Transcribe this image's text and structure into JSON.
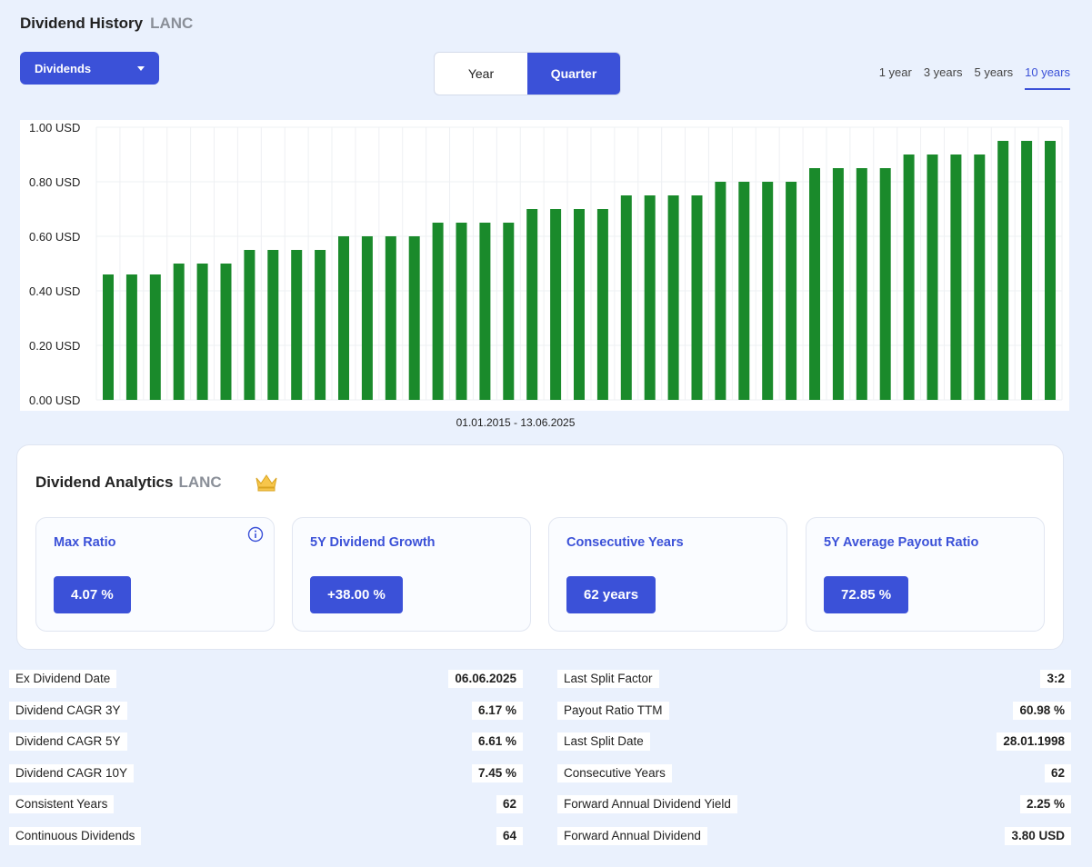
{
  "header": {
    "title": "Dividend History",
    "ticker": "LANC"
  },
  "dropdown": {
    "selected": "Dividends"
  },
  "toggle": {
    "year_label": "Year",
    "quarter_label": "Quarter",
    "active": "Quarter"
  },
  "ranges": [
    "1 year",
    "3 years",
    "5 years",
    "10 years"
  ],
  "selected_range": "10 years",
  "colors": {
    "accent": "#3b51d8",
    "bar": "#1a8a2b",
    "background": "#eaf1fd"
  },
  "chart_data": {
    "type": "bar",
    "ylim": [
      0,
      1.0
    ],
    "ytick_labels": [
      "1.00 USD",
      "0.80 USD",
      "0.60 USD",
      "0.40 USD",
      "0.20 USD",
      "0.00 USD"
    ],
    "grid": true,
    "xlabel": "01.01.2015 - 13.06.2025",
    "values": [
      0.46,
      0.46,
      0.46,
      0.5,
      0.5,
      0.5,
      0.55,
      0.55,
      0.55,
      0.55,
      0.6,
      0.6,
      0.6,
      0.6,
      0.65,
      0.65,
      0.65,
      0.65,
      0.7,
      0.7,
      0.7,
      0.7,
      0.75,
      0.75,
      0.75,
      0.75,
      0.8,
      0.8,
      0.8,
      0.8,
      0.85,
      0.85,
      0.85,
      0.85,
      0.9,
      0.9,
      0.9,
      0.9,
      0.95,
      0.95,
      0.95
    ]
  },
  "analytics": {
    "title": "Dividend Analytics",
    "ticker": "LANC",
    "crown_icon": "crown-icon",
    "metrics": [
      {
        "label": "Max Ratio",
        "value": "4.07 %"
      },
      {
        "label": "5Y Dividend Growth",
        "value": "+38.00 %"
      },
      {
        "label": "Consecutive Years",
        "value": "62 years"
      },
      {
        "label": "5Y Average Payout Ratio",
        "value": "72.85 %"
      }
    ]
  },
  "stats_left": [
    {
      "label": "Ex Dividend Date",
      "value": "06.06.2025"
    },
    {
      "label": "Dividend CAGR 3Y",
      "value": "6.17 %"
    },
    {
      "label": "Dividend CAGR 5Y",
      "value": "6.61 %"
    },
    {
      "label": "Dividend CAGR 10Y",
      "value": "7.45 %"
    },
    {
      "label": "Consistent Years",
      "value": "62"
    },
    {
      "label": "Continuous Dividends",
      "value": "64"
    }
  ],
  "stats_right": [
    {
      "label": "Last Split Factor",
      "value": "3:2"
    },
    {
      "label": "Payout Ratio TTM",
      "value": "60.98 %"
    },
    {
      "label": "Last Split Date",
      "value": "28.01.1998"
    },
    {
      "label": "Consecutive Years",
      "value": "62"
    },
    {
      "label": "Forward Annual Dividend Yield",
      "value": "2.25 %"
    },
    {
      "label": "Forward Annual Dividend",
      "value": "3.80 USD"
    }
  ]
}
